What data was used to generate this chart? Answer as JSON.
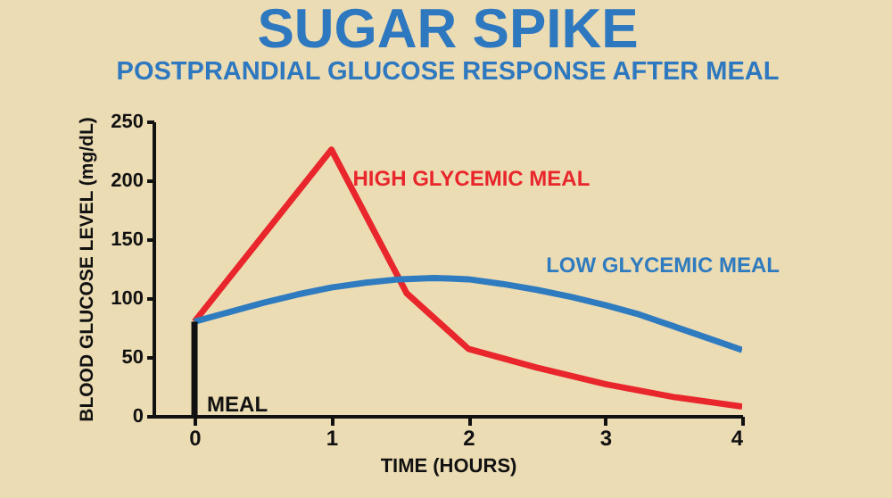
{
  "chart_data": {
    "type": "line",
    "title": "SUGAR SPIKE",
    "subtitle": "POSTPRANDIAL GLUCOSE RESPONSE AFTER MEAL",
    "xlabel": "TIME (HOURS)",
    "ylabel": "BLOOD GLUCOSE LEVEL (mg/dL)",
    "xlim": [
      -0.3,
      4
    ],
    "xticks": [
      0,
      1,
      2,
      3,
      4
    ],
    "ylim": [
      0,
      250
    ],
    "yticks": [
      0,
      50,
      100,
      150,
      200,
      250
    ],
    "grid": false,
    "marker": "none",
    "line_style": "solid",
    "annotations": [
      {
        "text": "MEAL",
        "x": 0,
        "y": 10
      }
    ],
    "series": [
      {
        "name": "HIGH GLYCEMIC MEAL",
        "color": "#e8262b",
        "x": [
          0,
          1,
          1.55,
          2,
          2.5,
          3,
          3.5,
          4
        ],
        "values": [
          80,
          226,
          104,
          57,
          41,
          27,
          16,
          8
        ]
      },
      {
        "name": "LOW GLYCEMIC MEAL",
        "color": "#2f7bbf",
        "x": [
          0,
          0.25,
          0.5,
          0.75,
          1,
          1.25,
          1.5,
          1.75,
          2,
          2.25,
          2.5,
          2.75,
          3,
          3.25,
          3.5,
          3.75,
          4
        ],
        "values": [
          80,
          88,
          96,
          103,
          109,
          113,
          116,
          117,
          116,
          112,
          107,
          101,
          94,
          86,
          76,
          66,
          56
        ]
      },
      {
        "color": "#111111",
        "x": [
          0,
          0
        ],
        "values": [
          0,
          80
        ]
      }
    ]
  }
}
